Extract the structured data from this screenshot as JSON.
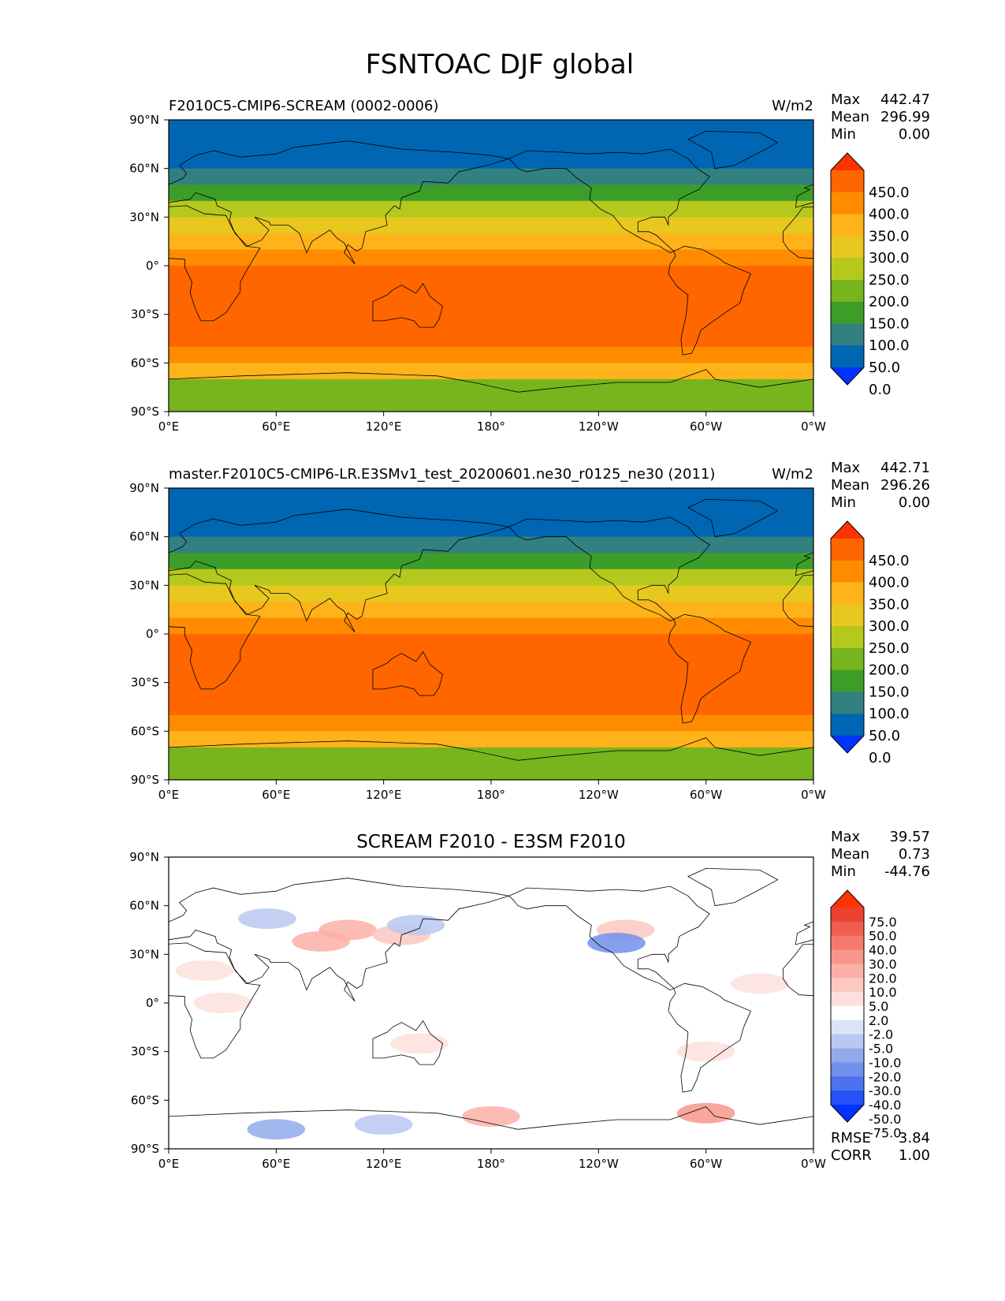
{
  "figure_title": "FSNTOAC DJF global",
  "axes": {
    "lon_ticks": [
      "0°E",
      "60°E",
      "120°E",
      "180°",
      "120°W",
      "60°W",
      "0°W"
    ],
    "lat_ticks": [
      "90°N",
      "60°N",
      "30°N",
      "0°",
      "30°S",
      "60°S",
      "90°S"
    ]
  },
  "colors": {
    "field_levels": [
      "#0033ff",
      "#0066b3",
      "#338080",
      "#3c9e28",
      "#78b41e",
      "#b4c81e",
      "#e6c81e",
      "#ffb31a",
      "#ff8c00",
      "#ff6600",
      "#ff3300"
    ],
    "diff_levels": [
      "#0033ff",
      "#2652f5",
      "#4d72f0",
      "#7090eb",
      "#92aaeb",
      "#b8c8f2",
      "#dbe3f7",
      "#ffffff",
      "#fde0dc",
      "#fcc8c0",
      "#fbb0a6",
      "#f8968a",
      "#f47a6e",
      "#ef5e50",
      "#ea4131",
      "#ff3300"
    ],
    "coastline": "#000000"
  },
  "chart_data": [
    {
      "type": "heatmap",
      "title": "F2010C5-CMIP6-SCREAM (0002-0006)",
      "units": "W/m2",
      "stats": {
        "max_label": "Max",
        "max": "442.47",
        "mean_label": "Mean",
        "mean": "296.99",
        "min_label": "Min",
        "min": "0.00"
      },
      "colorbar_levels": [
        "450.0",
        "400.0",
        "350.0",
        "300.0",
        "250.0",
        "200.0",
        "150.0",
        "100.0",
        "50.0",
        "0.0"
      ],
      "x": [
        0,
        60,
        120,
        180,
        240,
        300,
        360
      ],
      "y": [
        90,
        60,
        30,
        0,
        -30,
        -60,
        -90
      ],
      "xlim": [
        0,
        360
      ],
      "ylim": [
        -90,
        90
      ],
      "zonal_values": [
        {
          "lat": 90,
          "value": 0
        },
        {
          "lat": 80,
          "value": 20
        },
        {
          "lat": 70,
          "value": 30
        },
        {
          "lat": 60,
          "value": 60
        },
        {
          "lat": 50,
          "value": 110
        },
        {
          "lat": 40,
          "value": 180
        },
        {
          "lat": 30,
          "value": 250
        },
        {
          "lat": 20,
          "value": 310
        },
        {
          "lat": 10,
          "value": 360
        },
        {
          "lat": 0,
          "value": 390
        },
        {
          "lat": -10,
          "value": 410
        },
        {
          "lat": -30,
          "value": 420
        },
        {
          "lat": -50,
          "value": 415
        },
        {
          "lat": -60,
          "value": 370
        },
        {
          "lat": -70,
          "value": 230
        },
        {
          "lat": -80,
          "value": 160
        },
        {
          "lat": -90,
          "value": 150
        }
      ]
    },
    {
      "type": "heatmap",
      "title": "master.F2010C5-CMIP6-LR.E3SMv1_test_20200601.ne30_r0125_ne30 (2011)",
      "units": "W/m2",
      "stats": {
        "max_label": "Max",
        "max": "442.71",
        "mean_label": "Mean",
        "mean": "296.26",
        "min_label": "Min",
        "min": "0.00"
      },
      "colorbar_levels": [
        "450.0",
        "400.0",
        "350.0",
        "300.0",
        "250.0",
        "200.0",
        "150.0",
        "100.0",
        "50.0",
        "0.0"
      ],
      "x": [
        0,
        60,
        120,
        180,
        240,
        300,
        360
      ],
      "y": [
        90,
        60,
        30,
        0,
        -30,
        -60,
        -90
      ],
      "xlim": [
        0,
        360
      ],
      "ylim": [
        -90,
        90
      ],
      "zonal_values": [
        {
          "lat": 90,
          "value": 0
        },
        {
          "lat": 80,
          "value": 20
        },
        {
          "lat": 70,
          "value": 30
        },
        {
          "lat": 60,
          "value": 60
        },
        {
          "lat": 50,
          "value": 110
        },
        {
          "lat": 40,
          "value": 180
        },
        {
          "lat": 30,
          "value": 250
        },
        {
          "lat": 20,
          "value": 310
        },
        {
          "lat": 10,
          "value": 360
        },
        {
          "lat": 0,
          "value": 390
        },
        {
          "lat": -10,
          "value": 410
        },
        {
          "lat": -30,
          "value": 420
        },
        {
          "lat": -50,
          "value": 415
        },
        {
          "lat": -60,
          "value": 370
        },
        {
          "lat": -70,
          "value": 230
        },
        {
          "lat": -80,
          "value": 160
        },
        {
          "lat": -90,
          "value": 150
        }
      ]
    },
    {
      "type": "heatmap",
      "title": "SCREAM F2010 - E3SM F2010",
      "units": "",
      "stats": {
        "max_label": "Max",
        "max": "39.57",
        "mean_label": "Mean",
        "mean": "0.73",
        "min_label": "Min",
        "min": "-44.76"
      },
      "extra_stats": {
        "rmse_label": "RMSE",
        "rmse": "3.84",
        "corr_label": "CORR",
        "corr": "1.00"
      },
      "colorbar_levels": [
        "75.0",
        "50.0",
        "40.0",
        "30.0",
        "20.0",
        "10.0",
        "5.0",
        "2.0",
        "-2.0",
        "-5.0",
        "-10.0",
        "-20.0",
        "-30.0",
        "-40.0",
        "-50.0",
        "-75.0"
      ],
      "x": [
        0,
        60,
        120,
        180,
        240,
        300,
        360
      ],
      "y": [
        90,
        60,
        30,
        0,
        -30,
        -60,
        -90
      ],
      "xlim": [
        0,
        360
      ],
      "ylim": [
        -90,
        90
      ],
      "anomalies": [
        {
          "lon": 100,
          "lat": 45,
          "value": 20
        },
        {
          "lon": 85,
          "lat": 38,
          "value": 15
        },
        {
          "lon": 130,
          "lat": 42,
          "value": 10
        },
        {
          "lon": 55,
          "lat": 52,
          "value": -8
        },
        {
          "lon": 138,
          "lat": 48,
          "value": -10
        },
        {
          "lon": 255,
          "lat": 45,
          "value": 10
        },
        {
          "lon": 250,
          "lat": 37,
          "value": -25
        },
        {
          "lon": 20,
          "lat": 20,
          "value": 5
        },
        {
          "lon": 330,
          "lat": 12,
          "value": 5
        },
        {
          "lon": 140,
          "lat": -25,
          "value": 5
        },
        {
          "lon": 30,
          "lat": 0,
          "value": 3
        },
        {
          "lon": 300,
          "lat": -30,
          "value": 3
        },
        {
          "lon": 180,
          "lat": -70,
          "value": 20
        },
        {
          "lon": 300,
          "lat": -68,
          "value": 25
        },
        {
          "lon": 60,
          "lat": -78,
          "value": -15
        },
        {
          "lon": 120,
          "lat": -75,
          "value": -10
        }
      ]
    }
  ]
}
